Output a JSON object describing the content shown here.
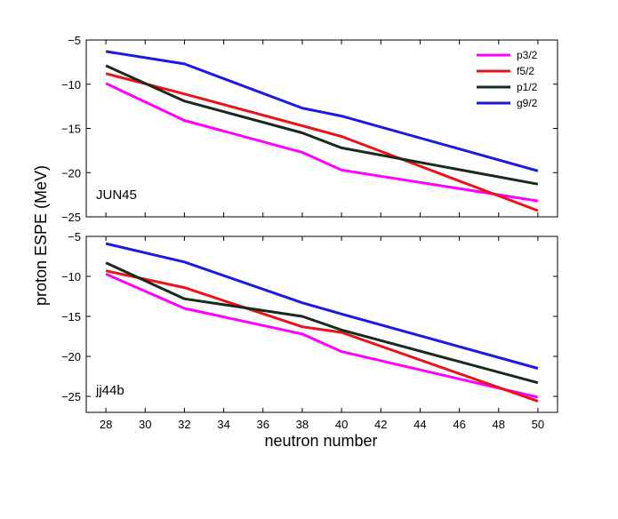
{
  "chart_data": {
    "type": "line",
    "xlabel": "neutron number",
    "ylabel": "proton ESPE (MeV)",
    "xlim": [
      27,
      51
    ],
    "x_ticks": [
      28,
      30,
      32,
      34,
      36,
      38,
      40,
      42,
      44,
      46,
      48,
      50
    ],
    "legend_position": "top-right",
    "grid": false,
    "colors": {
      "p3/2": "#ff00ff",
      "f5/2": "#e8141a",
      "p1/2": "#1a2a1a",
      "g9/2": "#1a1ae0"
    },
    "panels": [
      {
        "label": "JUN45",
        "ylim": [
          -25,
          -5
        ],
        "y_ticks": [
          -5,
          -10,
          -15,
          -20,
          -25
        ],
        "legend": true,
        "series": [
          {
            "name": "p3/2",
            "x": [
              28,
              32,
              38,
              40,
              50
            ],
            "y": [
              -9.9,
              -14.1,
              -17.7,
              -19.7,
              -23.2
            ]
          },
          {
            "name": "f5/2",
            "x": [
              28,
              32,
              38,
              40,
              50
            ],
            "y": [
              -8.8,
              -11.1,
              -14.7,
              -15.9,
              -24.3
            ]
          },
          {
            "name": "p1/2",
            "x": [
              28,
              32,
              38,
              40,
              50
            ],
            "y": [
              -7.9,
              -11.9,
              -15.5,
              -17.2,
              -21.3
            ]
          },
          {
            "name": "g9/2",
            "x": [
              28,
              32,
              38,
              40,
              50
            ],
            "y": [
              -6.3,
              -7.7,
              -12.7,
              -13.6,
              -19.8
            ]
          }
        ]
      },
      {
        "label": "jj44b",
        "ylim": [
          -27,
          -5
        ],
        "y_ticks": [
          -5,
          -10,
          -15,
          -20,
          -25
        ],
        "legend": false,
        "series": [
          {
            "name": "p3/2",
            "x": [
              28,
              32,
              38,
              40,
              50
            ],
            "y": [
              -9.7,
              -14.0,
              -17.2,
              -19.4,
              -25.1
            ]
          },
          {
            "name": "f5/2",
            "x": [
              28,
              32,
              38,
              40,
              50
            ],
            "y": [
              -9.3,
              -11.4,
              -16.3,
              -17.0,
              -25.6
            ]
          },
          {
            "name": "p1/2",
            "x": [
              28,
              32,
              38,
              40,
              50
            ],
            "y": [
              -8.3,
              -12.8,
              -15.0,
              -16.7,
              -23.3
            ]
          },
          {
            "name": "g9/2",
            "x": [
              28,
              32,
              38,
              40,
              50
            ],
            "y": [
              -5.9,
              -8.2,
              -13.3,
              -14.7,
              -21.5
            ]
          }
        ]
      }
    ]
  }
}
